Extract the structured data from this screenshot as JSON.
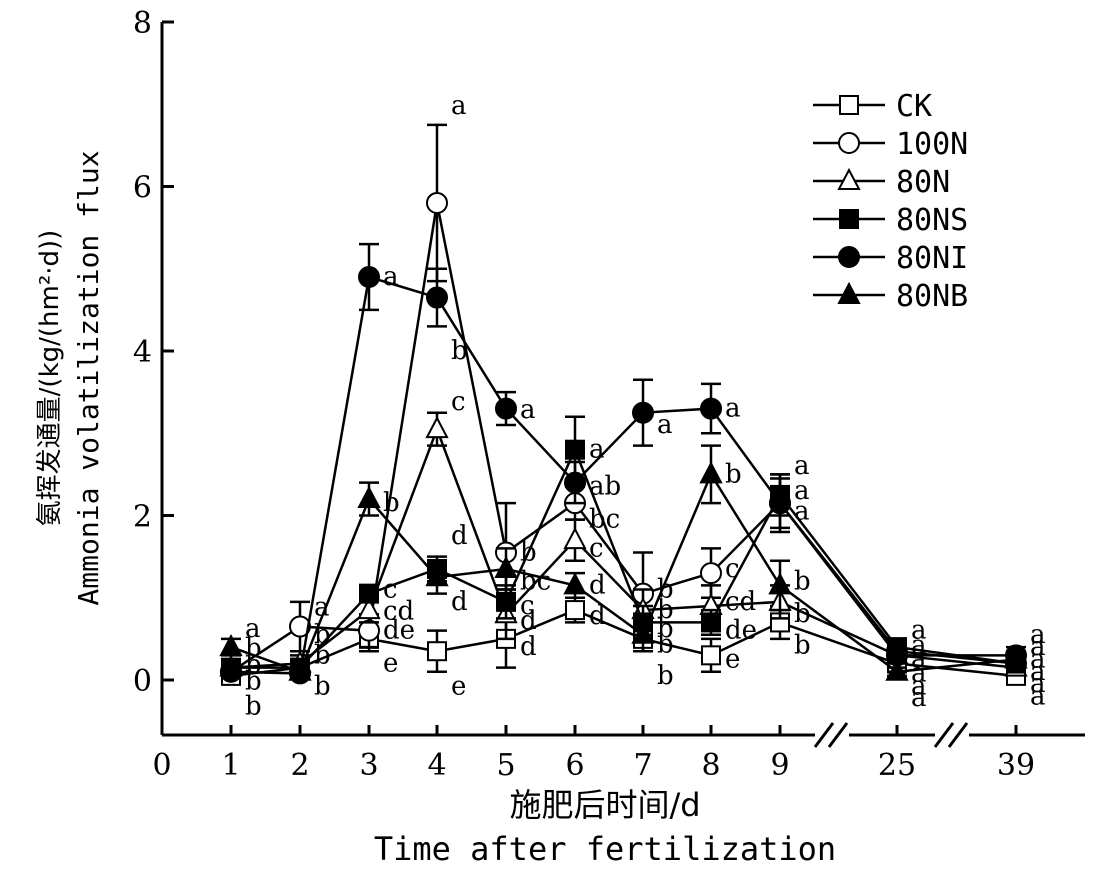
{
  "chart_data": {
    "type": "line",
    "ylabel_cn": "氨挥发通量/(kg/(hm²·d))",
    "ylabel_en": "Ammonia volatilization flux",
    "xlabel_cn": "施肥后时间/d",
    "xlabel_en": "Time after fertilization",
    "ylim": [
      0,
      8
    ],
    "yticks": [
      0,
      2,
      4,
      6,
      8
    ],
    "x_categories": [
      "1",
      "2",
      "3",
      "4",
      "5",
      "6",
      "7",
      "8",
      "9",
      "25",
      "39"
    ],
    "x_origin_label": "0",
    "axis_break": "between 9 and 25, and between 25 and 39",
    "legend_position": "top-right",
    "series": [
      {
        "name": "CK",
        "marker": "square-open",
        "values": [
          0.05,
          0.15,
          0.5,
          0.35,
          0.5,
          0.85,
          0.5,
          0.3,
          0.7,
          0.2,
          0.05
        ],
        "errors": [
          0.05,
          0.1,
          0.15,
          0.25,
          0.35,
          0.15,
          0.15,
          0.2,
          0.2,
          0.1,
          0.05
        ]
      },
      {
        "name": "100N",
        "marker": "circle-open",
        "values": [
          0.1,
          0.65,
          0.6,
          5.8,
          1.55,
          2.15,
          1.05,
          1.3,
          2.15,
          0.35,
          0.2
        ],
        "errors": [
          0.05,
          0.3,
          0.2,
          0.95,
          0.6,
          0.2,
          0.5,
          0.3,
          0.35,
          0.1,
          0.1
        ]
      },
      {
        "name": "80N",
        "marker": "triangle-open",
        "values": [
          0.15,
          0.2,
          0.85,
          3.05,
          0.8,
          1.7,
          0.85,
          0.9,
          0.95,
          0.3,
          0.15
        ],
        "errors": [
          0.05,
          0.1,
          0.15,
          0.2,
          0.3,
          0.25,
          0.25,
          0.25,
          0.2,
          0.1,
          0.05
        ]
      },
      {
        "name": "80NS",
        "marker": "square-filled",
        "values": [
          0.15,
          0.15,
          1.05,
          1.35,
          0.95,
          2.8,
          0.7,
          0.7,
          2.25,
          0.4,
          0.2
        ],
        "errors": [
          0.05,
          0.1,
          0.1,
          0.15,
          0.2,
          0.4,
          0.2,
          0.15,
          0.25,
          0.1,
          0.05
        ]
      },
      {
        "name": "80NI",
        "marker": "circle-filled",
        "values": [
          0.1,
          0.08,
          4.9,
          4.65,
          3.3,
          2.4,
          3.25,
          3.3,
          2.15,
          0.3,
          0.3
        ],
        "errors": [
          0.05,
          0.05,
          0.4,
          0.35,
          0.2,
          0.25,
          0.4,
          0.3,
          0.3,
          0.2,
          0.1
        ]
      },
      {
        "name": "80NB",
        "marker": "triangle-filled",
        "values": [
          0.4,
          0.1,
          2.2,
          1.25,
          1.35,
          1.15,
          0.55,
          2.5,
          1.15,
          0.1,
          0.25
        ],
        "errors": [
          0.1,
          0.05,
          0.2,
          0.2,
          0.25,
          0.15,
          0.2,
          0.35,
          0.3,
          0.05,
          0.1
        ]
      }
    ],
    "annotations": [
      {
        "x": "1",
        "y": 0.62,
        "text": "a"
      },
      {
        "x": "1",
        "y": 0.38,
        "text": "b"
      },
      {
        "x": "1",
        "y": 0.18,
        "text": "b"
      },
      {
        "x": "1",
        "y": -0.02,
        "text": "b"
      },
      {
        "x": "1",
        "y": -0.32,
        "text": "b"
      },
      {
        "x": "2",
        "y": 0.88,
        "text": "a"
      },
      {
        "x": "2",
        "y": 0.55,
        "text": "b"
      },
      {
        "x": "2",
        "y": 0.3,
        "text": "b"
      },
      {
        "x": "2",
        "y": -0.08,
        "text": "b"
      },
      {
        "x": "3",
        "y": 4.9,
        "text": "a"
      },
      {
        "x": "3",
        "y": 2.15,
        "text": "b"
      },
      {
        "x": "3",
        "y": 1.1,
        "text": "c"
      },
      {
        "x": "3",
        "y": 0.83,
        "text": "cd"
      },
      {
        "x": "3",
        "y": 0.6,
        "text": "de"
      },
      {
        "x": "3",
        "y": 0.2,
        "text": "e"
      },
      {
        "x": "4",
        "y": 6.98,
        "text": "a"
      },
      {
        "x": "4",
        "y": 4.0,
        "text": "b"
      },
      {
        "x": "4",
        "y": 3.38,
        "text": "c"
      },
      {
        "x": "4",
        "y": 1.75,
        "text": "d"
      },
      {
        "x": "4",
        "y": 0.95,
        "text": "d"
      },
      {
        "x": "4",
        "y": -0.08,
        "text": "e"
      },
      {
        "x": "5",
        "y": 3.28,
        "text": "a"
      },
      {
        "x": "5",
        "y": 1.55,
        "text": "b"
      },
      {
        "x": "5",
        "y": 1.2,
        "text": "bc"
      },
      {
        "x": "5",
        "y": 0.9,
        "text": "c"
      },
      {
        "x": "5",
        "y": 0.72,
        "text": "d"
      },
      {
        "x": "5",
        "y": 0.4,
        "text": "d"
      },
      {
        "x": "6",
        "y": 2.8,
        "text": "a"
      },
      {
        "x": "6",
        "y": 2.35,
        "text": "ab"
      },
      {
        "x": "6",
        "y": 1.95,
        "text": "bc"
      },
      {
        "x": "6",
        "y": 1.6,
        "text": "c"
      },
      {
        "x": "6",
        "y": 1.15,
        "text": "d"
      },
      {
        "x": "6",
        "y": 0.78,
        "text": "d"
      },
      {
        "x": "7",
        "y": 3.1,
        "text": "a"
      },
      {
        "x": "7",
        "y": 1.1,
        "text": "b"
      },
      {
        "x": "7",
        "y": 0.85,
        "text": "b"
      },
      {
        "x": "7",
        "y": 0.62,
        "text": "b"
      },
      {
        "x": "7",
        "y": 0.43,
        "text": "b"
      },
      {
        "x": "7",
        "y": 0.05,
        "text": "b"
      },
      {
        "x": "8",
        "y": 3.3,
        "text": "a"
      },
      {
        "x": "8",
        "y": 2.5,
        "text": "b"
      },
      {
        "x": "8",
        "y": 1.35,
        "text": "c"
      },
      {
        "x": "8",
        "y": 0.95,
        "text": "cd"
      },
      {
        "x": "8",
        "y": 0.6,
        "text": "de"
      },
      {
        "x": "8",
        "y": 0.25,
        "text": "e"
      },
      {
        "x": "9",
        "y": 2.6,
        "text": "a"
      },
      {
        "x": "9",
        "y": 2.3,
        "text": "a"
      },
      {
        "x": "9",
        "y": 2.05,
        "text": "a"
      },
      {
        "x": "9",
        "y": 1.2,
        "text": "b"
      },
      {
        "x": "9",
        "y": 0.8,
        "text": "b"
      },
      {
        "x": "9",
        "y": 0.42,
        "text": "b"
      },
      {
        "x": "25",
        "y": 0.6,
        "text": "a"
      },
      {
        "x": "25",
        "y": 0.42,
        "text": "a"
      },
      {
        "x": "25",
        "y": 0.25,
        "text": "a"
      },
      {
        "x": "25",
        "y": 0.08,
        "text": "a"
      },
      {
        "x": "25",
        "y": -0.08,
        "text": "a"
      },
      {
        "x": "25",
        "y": -0.22,
        "text": "a"
      },
      {
        "x": "39",
        "y": 0.55,
        "text": "a"
      },
      {
        "x": "39",
        "y": 0.4,
        "text": "a"
      },
      {
        "x": "39",
        "y": 0.25,
        "text": "a"
      },
      {
        "x": "39",
        "y": 0.1,
        "text": "a"
      },
      {
        "x": "39",
        "y": -0.05,
        "text": "a"
      },
      {
        "x": "39",
        "y": -0.2,
        "text": "a"
      }
    ]
  }
}
